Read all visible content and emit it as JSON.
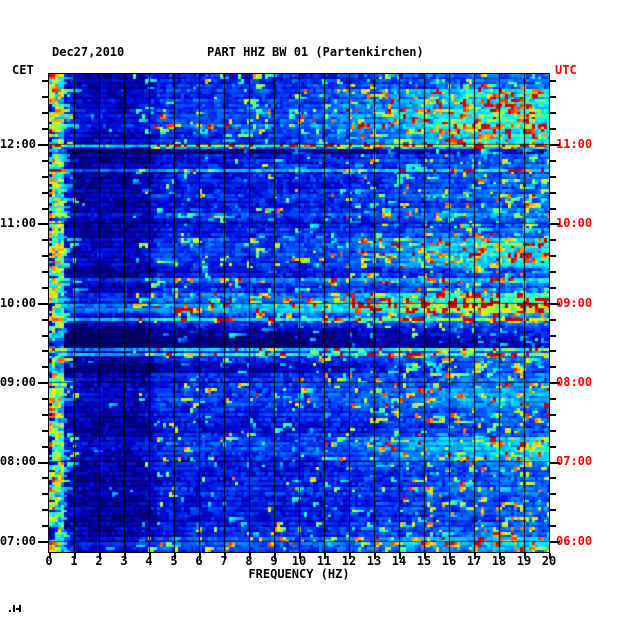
{
  "accent_red": "#ff0000",
  "header": {
    "date": "Dec27,2010",
    "title": "PART HHZ BW 01 (Partenkirchen)"
  },
  "axes": {
    "left": {
      "label": "CET",
      "hours": [
        "12:00",
        "11:00",
        "10:00",
        "09:00",
        "08:00",
        "07:00"
      ]
    },
    "right": {
      "label": "UTC",
      "hours": [
        "11:00",
        "10:00",
        "09:00",
        "08:00",
        "07:00",
        "06:00"
      ],
      "color": "#ff0000"
    },
    "bottom": {
      "label": "FREQUENCY (HZ)",
      "ticks": [
        "0",
        "1",
        "2",
        "3",
        "4",
        "5",
        "6",
        "7",
        "8",
        "9",
        "10",
        "11",
        "12",
        "13",
        "14",
        "15",
        "16",
        "17",
        "18",
        "19",
        "20"
      ]
    }
  },
  "chart_data": {
    "type": "heatmap",
    "subtype": "seismic-spectrogram",
    "title": "PART HHZ BW 01 (Partenkirchen)",
    "date": "Dec27,2010",
    "xlabel": "FREQUENCY (HZ)",
    "x_range_hz": [
      0,
      20
    ],
    "x_tick_step_hz": 1,
    "left_axis_label": "CET",
    "left_axis_hour_ticks": [
      "12:00",
      "11:00",
      "10:00",
      "09:00",
      "08:00",
      "07:00"
    ],
    "right_axis_label": "UTC",
    "right_axis_hour_ticks": [
      "11:00",
      "10:00",
      "09:00",
      "08:00",
      "07:00",
      "06:00"
    ],
    "minor_tick_minutes": 12,
    "grid": "vertical line every 1 Hz, horizontal line every hour",
    "legend": "none",
    "palette_stops": [
      [
        0.0,
        "#000066"
      ],
      [
        0.1,
        "#0000aa"
      ],
      [
        0.2,
        "#0010e0"
      ],
      [
        0.32,
        "#0050ff"
      ],
      [
        0.45,
        "#00a8ff"
      ],
      [
        0.55,
        "#00eaff"
      ],
      [
        0.63,
        "#40ffb0"
      ],
      [
        0.72,
        "#a8ff40"
      ],
      [
        0.8,
        "#ffee00"
      ],
      [
        0.88,
        "#ff8800"
      ],
      [
        0.95,
        "#ff3300"
      ],
      [
        1.0,
        "#cc0000"
      ]
    ],
    "bands": {
      "microseism_column_hz": [
        0.0,
        0.5
      ],
      "microseism_level": "high (cyan/yellow/red speckle all day)",
      "quiet_band_hz": [
        1.1,
        3.4
      ],
      "quiet_band_level": 0.09,
      "base_level": 0.23
    },
    "rows": 96,
    "row_minutes": 3.75,
    "row_profile": [
      0.3,
      0.3,
      0.32,
      0.34,
      0.32,
      0.34,
      0.33,
      0.35,
      0.38,
      0.36,
      0.42,
      0.34,
      0.33,
      0.35,
      0.52,
      0.12,
      0.26,
      0.28,
      0.3,
      0.33,
      0.3,
      0.28,
      0.27,
      0.29,
      0.33,
      0.28,
      0.27,
      0.3,
      0.37,
      0.28,
      0.27,
      0.29,
      0.3,
      0.33,
      0.35,
      0.33,
      0.35,
      0.33,
      0.32,
      0.26,
      0.27,
      0.45,
      0.3,
      0.32,
      0.42,
      0.44,
      0.55,
      0.53,
      0.36,
      0.45,
      0.28,
      0.17,
      0.14,
      0.08,
      0.08,
      0.4,
      0.42,
      0.3,
      0.18,
      0.18,
      0.3,
      0.32,
      0.33,
      0.34,
      0.34,
      0.35,
      0.33,
      0.29,
      0.31,
      0.28,
      0.26,
      0.27,
      0.28,
      0.33,
      0.35,
      0.34,
      0.31,
      0.31,
      0.3,
      0.28,
      0.27,
      0.29,
      0.28,
      0.31,
      0.3,
      0.26,
      0.27,
      0.29,
      0.28,
      0.26,
      0.28,
      0.31,
      0.3,
      0.38,
      0.4,
      0.36
    ],
    "right_boost_rows": [
      [
        3,
        13,
        0.28
      ],
      [
        33,
        38,
        0.26
      ],
      [
        44,
        47,
        0.25
      ],
      [
        58,
        59,
        0.2
      ],
      [
        63,
        66,
        0.16
      ],
      [
        73,
        77,
        0.22
      ],
      [
        93,
        95,
        0.15
      ]
    ],
    "streak_rows": [
      14,
      19,
      49,
      55,
      56
    ],
    "notable_features": [
      "bright full-width line at 12:00 CET",
      "very quiet dark band ~09:25-09:35 CET",
      "strong broadband bursts just below 10:00 CET",
      "dense high-frequency noise 10-20 Hz in morning hours"
    ]
  }
}
